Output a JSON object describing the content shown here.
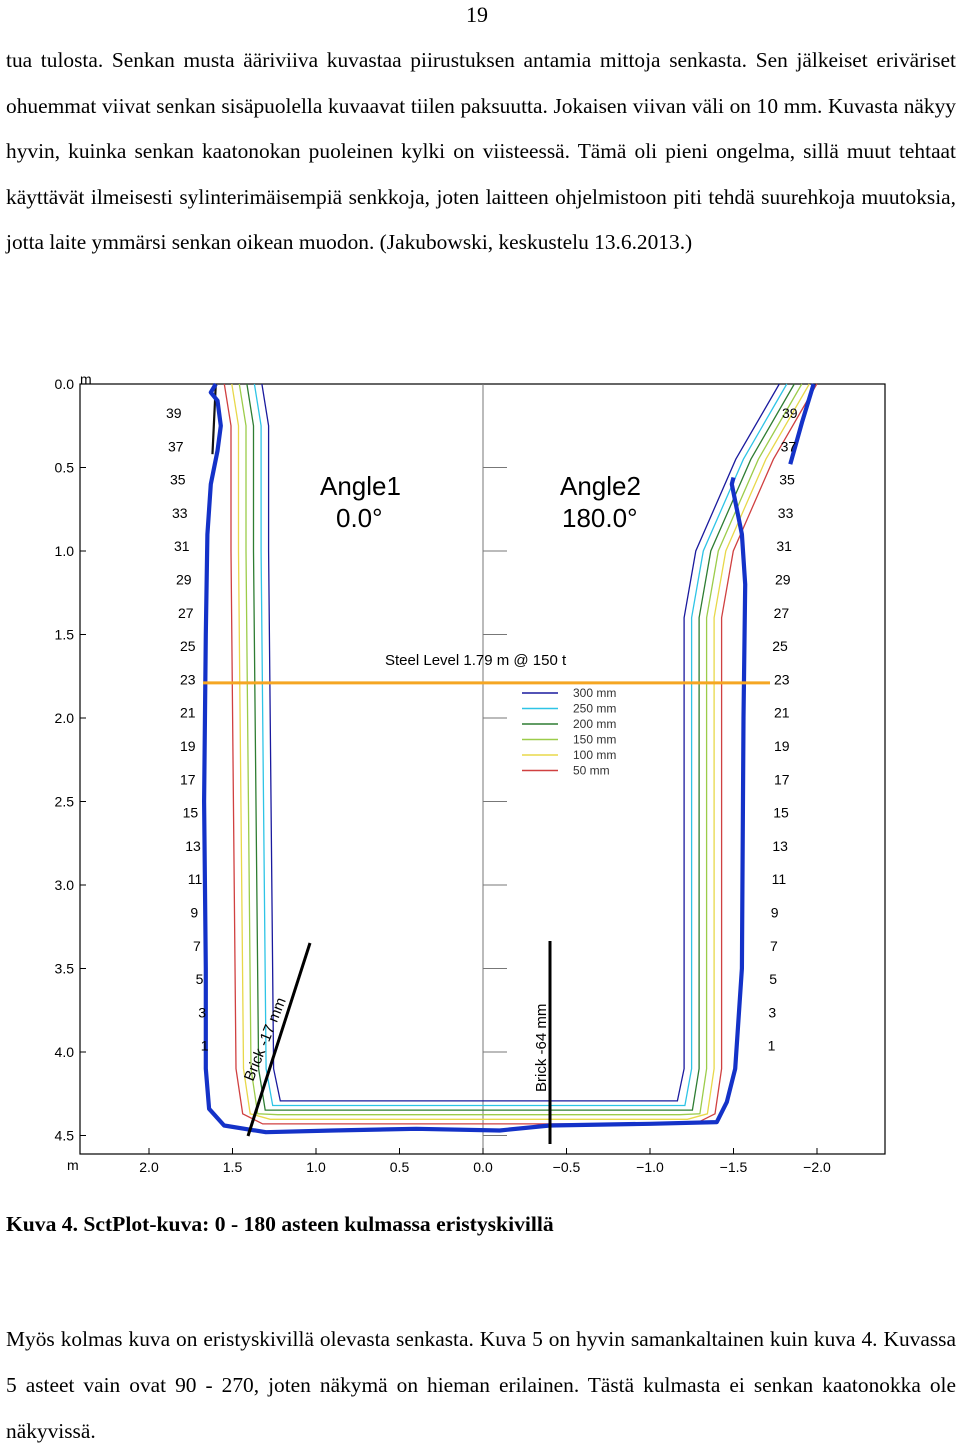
{
  "page_number": "19",
  "paragraph_1": "tua tulosta. Senkan musta ääriviiva kuvastaa piirustuksen antamia mittoja senkasta. Sen jälkeiset eriväriset ohuemmat viivat senkan sisäpuolella kuvaavat tiilen paksuutta. Jokaisen viivan väli on 10 mm. Kuvasta näkyy hyvin, kuinka senkan kaatonokan puoleinen kylki on viisteessä. Tämä oli pieni ongelma, sillä muut tehtaat käyttävät ilmeisesti sylinterimäisempiä senkkoja, joten laitteen ohjelmistoon piti tehdä suurehkoja muutoksia, jotta laite ymmärsi senkan oikean muodon. (Jakubowski, keskustelu 13.6.2013.)",
  "caption": "Kuva 4. SctPlot-kuva: 0 - 180 asteen kulmassa eristyskivillä",
  "paragraph_2": "Myös kolmas kuva on eristyskivillä olevasta senkasta. Kuva 5 on hyvin samankaltainen kuin kuva 4. Kuvassa 5 asteet vain ovat 90 - 270, joten näkymä on hieman erilainen. Tästä kulmasta ei senkan kaatonokka ole näkyvissä.",
  "chart_data": {
    "type": "line",
    "title_left": [
      "Angle1",
      "0.0°"
    ],
    "title_right": [
      "Angle2",
      "180.0°"
    ],
    "y_unit": "m",
    "x_unit": "m",
    "y_ticks": [
      "0.0",
      "0.5",
      "1.0",
      "1.5",
      "2.0",
      "2.5",
      "3.0",
      "3.5",
      "4.0",
      "4.5"
    ],
    "x_ticks": [
      "2.0",
      "1.5",
      "1.0",
      "0.5",
      "0.0",
      "−0.5",
      "−1.0",
      "−1.5",
      "−2.0"
    ],
    "xlim": [
      2.4,
      -2.4
    ],
    "ylim": [
      0.0,
      4.62
    ],
    "row_labels": [
      "39",
      "37",
      "35",
      "33",
      "31",
      "29",
      "27",
      "25",
      "23",
      "21",
      "19",
      "17",
      "15",
      "13",
      "11",
      "9",
      "7",
      "5",
      "3",
      "1"
    ],
    "steel_level": {
      "label": "Steel Level 1.79 m @ 150 t",
      "depth": 1.79,
      "color": "#f5a623"
    },
    "legend": [
      {
        "label": "300 mm",
        "color": "#1a1a9e"
      },
      {
        "label": "250 mm",
        "color": "#2ec4e6"
      },
      {
        "label": "200 mm",
        "color": "#2e7d32"
      },
      {
        "label": "150 mm",
        "color": "#9ccc4a"
      },
      {
        "label": "100 mm",
        "color": "#e8d84a"
      },
      {
        "label": "50 mm",
        "color": "#d04040"
      }
    ],
    "annotations": [
      {
        "text": "Brick -17 mm"
      },
      {
        "text": "Brick -64 mm"
      }
    ],
    "scan_color": "#1432c8",
    "outline_color": "#111111"
  }
}
